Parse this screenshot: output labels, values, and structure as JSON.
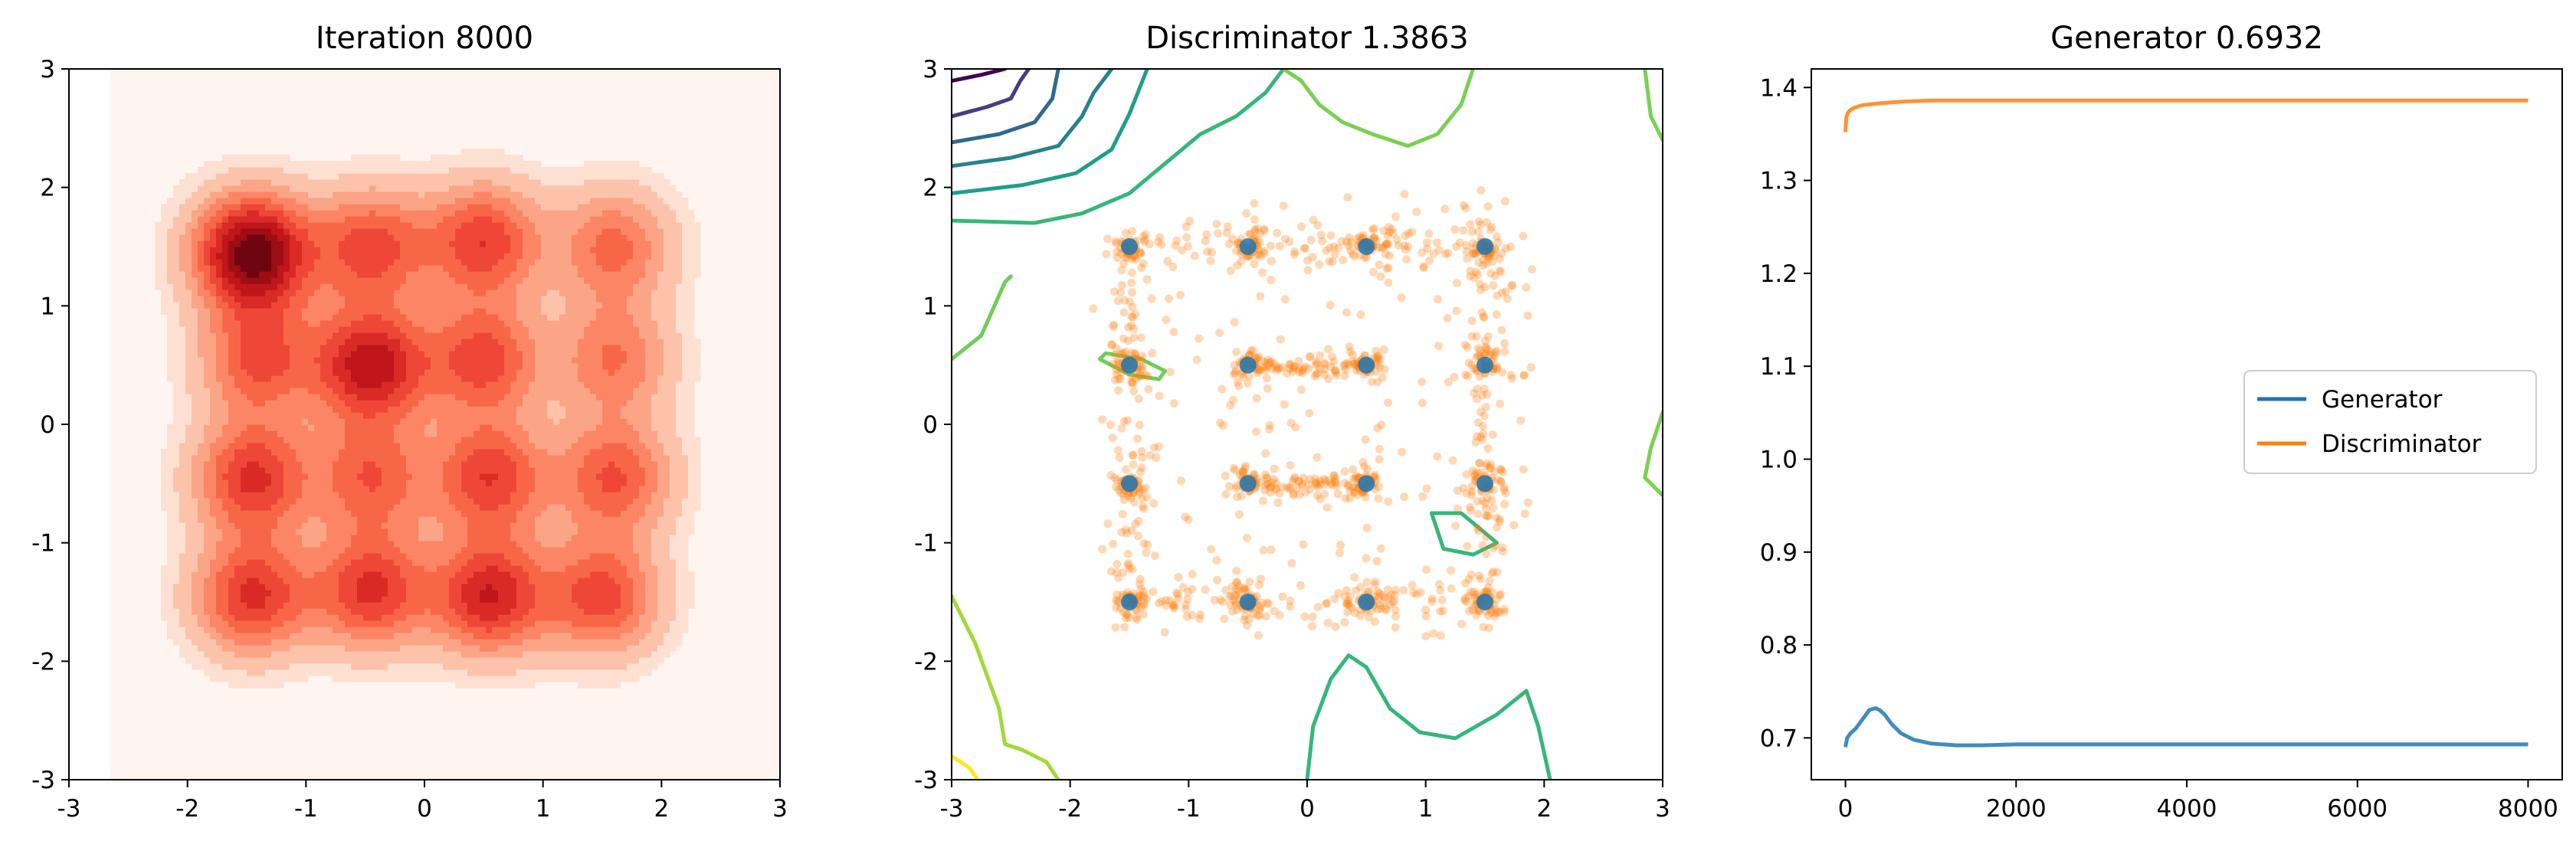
{
  "chart_data": [
    {
      "type": "heatmap",
      "title": "Iteration 8000",
      "xlim": [
        -3,
        3
      ],
      "ylim": [
        -3,
        3
      ],
      "xticks": [
        "-3",
        "-2",
        "-1",
        "0",
        "1",
        "2",
        "3"
      ],
      "yticks": [
        "-3",
        "-2",
        "-1",
        "0",
        "1",
        "2",
        "3"
      ],
      "colormap": "Reds",
      "levels": 10,
      "background_region": {
        "x": [
          -2.65,
          3
        ],
        "y": [
          -3,
          3
        ]
      },
      "density_modes": [
        {
          "x": -1.45,
          "y": 1.45,
          "strength": 1.35
        },
        {
          "x": -0.45,
          "y": 1.5,
          "strength": 0.75
        },
        {
          "x": 0.5,
          "y": 1.55,
          "strength": 0.8
        },
        {
          "x": 1.6,
          "y": 1.5,
          "strength": 0.6
        },
        {
          "x": -1.4,
          "y": 0.55,
          "strength": 0.7
        },
        {
          "x": -0.45,
          "y": 0.5,
          "strength": 1.05
        },
        {
          "x": 0.5,
          "y": 0.55,
          "strength": 0.75
        },
        {
          "x": 1.6,
          "y": 0.55,
          "strength": 0.55
        },
        {
          "x": -1.45,
          "y": -0.45,
          "strength": 0.85
        },
        {
          "x": -0.45,
          "y": -0.45,
          "strength": 0.65
        },
        {
          "x": 0.55,
          "y": -0.45,
          "strength": 0.8
        },
        {
          "x": 1.6,
          "y": -0.45,
          "strength": 0.7
        },
        {
          "x": -1.45,
          "y": -1.45,
          "strength": 0.85
        },
        {
          "x": -0.45,
          "y": -1.4,
          "strength": 0.85
        },
        {
          "x": 0.55,
          "y": -1.45,
          "strength": 0.95
        },
        {
          "x": 1.5,
          "y": -1.45,
          "strength": 0.75
        }
      ]
    },
    {
      "type": "scatter",
      "title": "Discriminator 1.3863",
      "xlim": [
        -3,
        3
      ],
      "ylim": [
        -3,
        3
      ],
      "xticks": [
        "-3",
        "-2",
        "-1",
        "0",
        "1",
        "2",
        "3"
      ],
      "yticks": [
        "-3",
        "-2",
        "-1",
        "0",
        "1",
        "2",
        "3"
      ],
      "colors": {
        "real": "#1f77b4",
        "generated": "#ff7f0e"
      },
      "real_points": [
        {
          "x": -1.5,
          "y": 1.5
        },
        {
          "x": -0.5,
          "y": 1.5
        },
        {
          "x": 0.5,
          "y": 1.5
        },
        {
          "x": 1.5,
          "y": 1.5
        },
        {
          "x": -1.5,
          "y": 0.5
        },
        {
          "x": -0.5,
          "y": 0.5
        },
        {
          "x": 0.5,
          "y": 0.5
        },
        {
          "x": 1.5,
          "y": 0.5
        },
        {
          "x": -1.5,
          "y": -0.5
        },
        {
          "x": -0.5,
          "y": -0.5
        },
        {
          "x": 0.5,
          "y": -0.5
        },
        {
          "x": 1.5,
          "y": -0.5
        },
        {
          "x": -1.5,
          "y": -1.5
        },
        {
          "x": -0.5,
          "y": -1.5
        },
        {
          "x": 0.5,
          "y": -1.5
        },
        {
          "x": 1.5,
          "y": -1.5
        }
      ],
      "contours": [
        {
          "color": "#440154",
          "points": [
            [
              -3,
              2.9
            ],
            [
              -2.75,
              2.95
            ],
            [
              -2.55,
              3
            ]
          ]
        },
        {
          "color": "#433e85",
          "points": [
            [
              -3,
              2.6
            ],
            [
              -2.7,
              2.68
            ],
            [
              -2.5,
              2.75
            ],
            [
              -2.42,
              2.9
            ],
            [
              -2.35,
              3
            ]
          ]
        },
        {
          "color": "#31688e",
          "points": [
            [
              -3,
              2.38
            ],
            [
              -2.6,
              2.45
            ],
            [
              -2.3,
              2.55
            ],
            [
              -2.15,
              2.75
            ],
            [
              -2.1,
              3
            ]
          ]
        },
        {
          "color": "#26828e",
          "points": [
            [
              -3,
              2.18
            ],
            [
              -2.5,
              2.25
            ],
            [
              -2.1,
              2.35
            ],
            [
              -1.9,
              2.6
            ],
            [
              -1.8,
              2.8
            ],
            [
              -1.65,
              3
            ]
          ]
        },
        {
          "color": "#1f9e89",
          "points": [
            [
              -3,
              1.95
            ],
            [
              -2.4,
              2.02
            ],
            [
              -1.95,
              2.12
            ],
            [
              -1.65,
              2.32
            ],
            [
              -1.5,
              2.62
            ],
            [
              -1.35,
              3
            ]
          ]
        },
        {
          "color": "#35b779",
          "points": [
            [
              -3,
              1.72
            ],
            [
              -2.3,
              1.7
            ],
            [
              -1.9,
              1.78
            ],
            [
              -1.5,
              1.95
            ],
            [
              -1.2,
              2.2
            ],
            [
              -0.9,
              2.45
            ],
            [
              -0.6,
              2.6
            ],
            [
              -0.35,
              2.8
            ],
            [
              -0.2,
              3
            ]
          ]
        },
        {
          "color": "#6ece58",
          "points": [
            [
              -3,
              0.55
            ],
            [
              -2.75,
              0.75
            ],
            [
              -2.55,
              1.2
            ],
            [
              -2.5,
              1.25
            ]
          ]
        },
        {
          "color": "#6ece58",
          "points": [
            [
              -1.7,
              0.6
            ],
            [
              -1.4,
              0.55
            ],
            [
              -1.2,
              0.45
            ],
            [
              -1.25,
              0.38
            ],
            [
              -1.5,
              0.42
            ],
            [
              -1.75,
              0.55
            ],
            [
              -1.7,
              0.6
            ]
          ]
        },
        {
          "color": "#7ad151",
          "points": [
            [
              -0.2,
              3
            ],
            [
              -0.05,
              2.9
            ],
            [
              0.1,
              2.7
            ],
            [
              0.3,
              2.55
            ],
            [
              0.55,
              2.45
            ],
            [
              0.85,
              2.35
            ],
            [
              1.1,
              2.45
            ],
            [
              1.3,
              2.7
            ],
            [
              1.4,
              3
            ]
          ]
        },
        {
          "color": "#7ad151",
          "points": [
            [
              2.85,
              3
            ],
            [
              2.9,
              2.6
            ],
            [
              3,
              2.4
            ]
          ]
        },
        {
          "color": "#7ad151",
          "points": [
            [
              3,
              0.1
            ],
            [
              2.9,
              -0.2
            ],
            [
              2.85,
              -0.45
            ],
            [
              3,
              -0.6
            ]
          ]
        },
        {
          "color": "#35b779",
          "points": [
            [
              1.05,
              -0.75
            ],
            [
              1.3,
              -0.75
            ],
            [
              1.6,
              -1.0
            ],
            [
              1.4,
              -1.1
            ],
            [
              1.15,
              -1.05
            ],
            [
              1.05,
              -0.75
            ]
          ]
        },
        {
          "color": "#35b779",
          "points": [
            [
              0.0,
              -3
            ],
            [
              0.05,
              -2.55
            ],
            [
              0.2,
              -2.15
            ],
            [
              0.35,
              -1.95
            ],
            [
              0.5,
              -2.05
            ],
            [
              0.7,
              -2.4
            ],
            [
              0.95,
              -2.6
            ],
            [
              1.25,
              -2.65
            ],
            [
              1.6,
              -2.45
            ],
            [
              1.85,
              -2.25
            ],
            [
              1.95,
              -2.55
            ],
            [
              2.05,
              -3
            ]
          ]
        },
        {
          "color": "#a0da39",
          "points": [
            [
              -3,
              -1.45
            ],
            [
              -2.8,
              -1.85
            ],
            [
              -2.6,
              -2.4
            ],
            [
              -2.55,
              -2.7
            ],
            [
              -2.4,
              -2.75
            ],
            [
              -2.2,
              -2.85
            ],
            [
              -2.1,
              -3
            ]
          ]
        },
        {
          "color": "#fde725",
          "points": [
            [
              -3,
              -2.8
            ],
            [
              -2.85,
              -2.9
            ],
            [
              -2.78,
              -3
            ]
          ]
        }
      ]
    },
    {
      "type": "line",
      "title": "Generator 0.6932",
      "xlim": [
        -400,
        8400
      ],
      "ylim": [
        0.655,
        1.42
      ],
      "xticks": [
        "0",
        "2000",
        "4000",
        "6000",
        "8000"
      ],
      "yticks": [
        "0.7",
        "0.8",
        "0.9",
        "1.0",
        "1.1",
        "1.2",
        "1.3",
        "1.4"
      ],
      "legend_location": "center-right",
      "series": [
        {
          "name": "Generator",
          "color": "#1f77b4",
          "x": [
            0,
            20,
            60,
            120,
            200,
            280,
            350,
            400,
            460,
            540,
            650,
            800,
            1000,
            1300,
            1600,
            2000,
            3000,
            4000,
            5000,
            6000,
            7000,
            8000
          ],
          "y": [
            0.69,
            0.7,
            0.705,
            0.71,
            0.72,
            0.73,
            0.732,
            0.73,
            0.725,
            0.715,
            0.705,
            0.698,
            0.694,
            0.692,
            0.692,
            0.693,
            0.693,
            0.693,
            0.693,
            0.693,
            0.693,
            0.693
          ]
        },
        {
          "name": "Discriminator",
          "color": "#ff7f0e",
          "x": [
            0,
            10,
            30,
            60,
            100,
            200,
            400,
            700,
            1000,
            1500,
            2000,
            3000,
            4000,
            5000,
            6000,
            7000,
            8000
          ],
          "y": [
            1.352,
            1.368,
            1.373,
            1.376,
            1.378,
            1.381,
            1.383,
            1.385,
            1.386,
            1.386,
            1.386,
            1.386,
            1.386,
            1.386,
            1.386,
            1.386,
            1.386
          ]
        }
      ]
    }
  ]
}
